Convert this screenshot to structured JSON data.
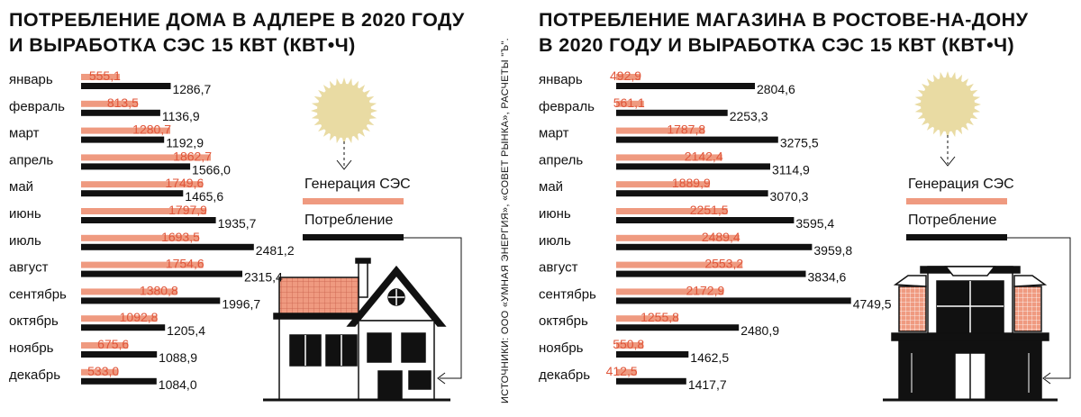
{
  "colors": {
    "generation": "#ef9a80",
    "consumption": "#111111",
    "generation_label": "#e0563a",
    "sun": "#e9dba3"
  },
  "source_note": "ИСТОЧНИКИ: ООО «УМНАЯ ЭНЕРГИЯ», «СОВЕТ РЫНКА», РАСЧЕТЫ \"Ъ\".",
  "chart_data": [
    {
      "type": "bar",
      "title": [
        "ПОТРЕБЛЕНИЕ ДОМА В АДЛЕРЕ В 2020 ГОДУ",
        "И ВЫРАБОТКА СЭС 15 КВТ (КВТ•Ч)"
      ],
      "categories": [
        "январь",
        "февраль",
        "март",
        "апрель",
        "май",
        "июнь",
        "июль",
        "август",
        "сентябрь",
        "октябрь",
        "ноябрь",
        "декабрь"
      ],
      "series": [
        {
          "name": "Генерация СЭС",
          "values": [
            555.1,
            813.5,
            1280.7,
            1862.7,
            1749.6,
            1797.9,
            1693.5,
            1754.6,
            1380.8,
            1092.8,
            675.6,
            533.0
          ],
          "labels": [
            "555,1",
            "813,5",
            "1280,7",
            "1862,7",
            "1749,6",
            "1797,9",
            "1693,5",
            "1754,6",
            "1380,8",
            "1092,8",
            "675,6",
            "533,0"
          ]
        },
        {
          "name": "Потребление",
          "values": [
            1286.7,
            1136.9,
            1192.9,
            1566.0,
            1465.6,
            1935.7,
            2481.2,
            2315.4,
            1996.7,
            1205.4,
            1088.9,
            1084.0
          ],
          "labels": [
            "1286,7",
            "1136,9",
            "1192,9",
            "1566,0",
            "1465,6",
            "1935,7",
            "2481,2",
            "2315,4",
            "1996,7",
            "1205,4",
            "1088,9",
            "1084,0"
          ]
        }
      ],
      "legend": {
        "generation": "Генерация СЭС",
        "consumption": "Потребление"
      }
    },
    {
      "type": "bar",
      "title": [
        "ПОТРЕБЛЕНИЕ МАГАЗИНА В РОСТОВЕ-НА-ДОНУ",
        "В 2020 ГОДУ И ВЫРАБОТКА СЭС 15 КВТ (КВТ•Ч)"
      ],
      "categories": [
        "январь",
        "февраль",
        "март",
        "апрель",
        "май",
        "июнь",
        "июль",
        "август",
        "сентябрь",
        "октябрь",
        "ноябрь",
        "декабрь"
      ],
      "series": [
        {
          "name": "Генерация СЭС",
          "values": [
            492.9,
            561.1,
            1787.8,
            2142.4,
            1889.9,
            2251.5,
            2489.4,
            2553.2,
            2172.9,
            1255.8,
            550.8,
            412.5
          ],
          "labels": [
            "492,9",
            "561,1",
            "1787,8",
            "2142,4",
            "1889,9",
            "2251,5",
            "2489,4",
            "2553,2",
            "2172,9",
            "1255,8",
            "550,8",
            "412,5"
          ]
        },
        {
          "name": "Потребление",
          "values": [
            2804.6,
            2253.3,
            3275.5,
            3114.9,
            3070.3,
            3595.4,
            3959.8,
            3834.6,
            4749.5,
            2480.9,
            1462.5,
            1417.7
          ],
          "labels": [
            "2804,6",
            "2253,3",
            "3275,5",
            "3114,9",
            "3070,3",
            "3595,4",
            "3959,8",
            "3834,6",
            "4749,5",
            "2480,9",
            "1462,5",
            "1417,7"
          ]
        }
      ],
      "legend": {
        "generation": "Генерация СЭС",
        "consumption": "Потребление"
      }
    }
  ]
}
